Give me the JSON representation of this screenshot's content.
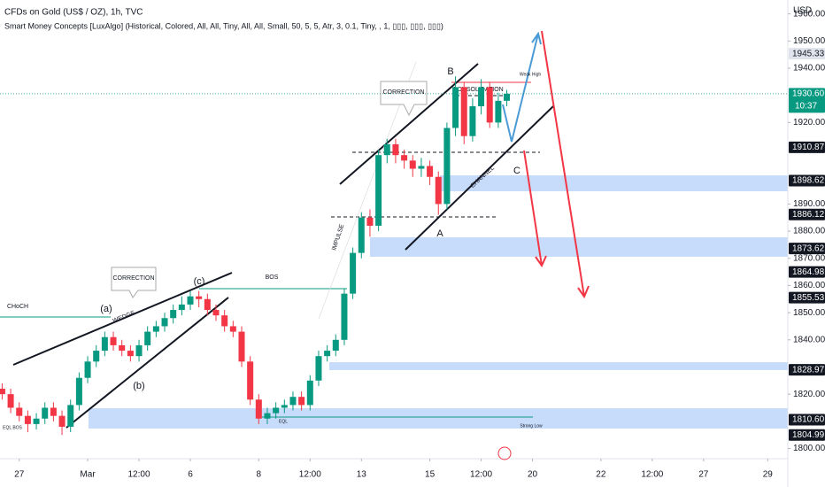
{
  "chart_data": {
    "type": "candlestick",
    "title": "CFDs on Gold (US$ / OZ), 1h, TVC",
    "subtitle": "Smart Money Concepts [LuxAlgo] (Historical, Colored, All, All, Tiny, All, All, Small, 50, 5, 5, Atr, 3, 0.1, Tiny, , 1, ▯▯▯, ▯▯▯, ▯▯▯)",
    "y_axis_label": "USD",
    "countdown": "10:37",
    "up_color": "#089981",
    "down_color": "#f23645",
    "x": [
      -4,
      -2,
      0,
      2,
      4,
      6,
      8,
      10,
      12,
      14,
      16,
      18,
      20,
      22,
      24,
      26,
      28,
      30,
      32,
      34,
      36,
      38,
      40,
      42,
      44,
      46,
      48,
      50,
      52,
      54,
      56,
      58,
      60,
      62,
      64,
      66,
      68,
      70,
      72,
      74,
      76,
      78,
      80,
      82,
      84,
      86,
      88,
      90,
      92,
      94,
      96,
      98,
      100,
      102,
      104,
      106,
      108,
      110,
      112,
      114
    ],
    "open": [
      1822,
      1820,
      1815,
      1812,
      1809,
      1811,
      1815,
      1812,
      1808,
      1816,
      1826,
      1832,
      1836,
      1841,
      1838,
      1836,
      1834,
      1838,
      1843,
      1845,
      1848,
      1851,
      1853,
      1856,
      1855,
      1851,
      1849,
      1845,
      1843,
      1832,
      1818,
      1811,
      1813,
      1815,
      1816,
      1819,
      1816,
      1825,
      1834,
      1836,
      1840,
      1857,
      1872,
      1885,
      1882,
      1908,
      1912,
      1908,
      1906,
      1903,
      1904,
      1900,
      1890,
      1918,
      1933,
      1915,
      1926,
      1933,
      1920,
      1928
    ],
    "high": [
      1824,
      1822,
      1817,
      1814,
      1813,
      1817,
      1817,
      1814,
      1818,
      1828,
      1834,
      1838,
      1843,
      1843,
      1840,
      1838,
      1840,
      1845,
      1847,
      1850,
      1853,
      1856,
      1858,
      1858,
      1857,
      1853,
      1851,
      1847,
      1845,
      1834,
      1820,
      1815,
      1817,
      1818,
      1821,
      1821,
      1827,
      1836,
      1838,
      1842,
      1859,
      1874,
      1887,
      1888,
      1910,
      1914,
      1914,
      1910,
      1908,
      1907,
      1906,
      1902,
      1920,
      1937,
      1935,
      1929,
      1936,
      1935,
      1931,
      1932
    ],
    "low": [
      1818,
      1813,
      1810,
      1806,
      1807,
      1809,
      1810,
      1805,
      1806,
      1814,
      1824,
      1830,
      1834,
      1836,
      1834,
      1832,
      1832,
      1836,
      1841,
      1843,
      1846,
      1849,
      1851,
      1852,
      1849,
      1847,
      1843,
      1841,
      1830,
      1816,
      1809,
      1809,
      1811,
      1813,
      1814,
      1814,
      1814,
      1823,
      1832,
      1834,
      1838,
      1855,
      1870,
      1878,
      1880,
      1905,
      1905,
      1903,
      1900,
      1900,
      1897,
      1886,
      1888,
      1915,
      1912,
      1913,
      1923,
      1918,
      1918,
      1926
    ],
    "close": [
      1820,
      1815,
      1812,
      1809,
      1811,
      1815,
      1812,
      1808,
      1816,
      1826,
      1832,
      1836,
      1841,
      1838,
      1836,
      1834,
      1838,
      1843,
      1845,
      1848,
      1851,
      1853,
      1856,
      1855,
      1851,
      1849,
      1845,
      1843,
      1832,
      1818,
      1811,
      1813,
      1815,
      1816,
      1819,
      1816,
      1825,
      1834,
      1836,
      1840,
      1857,
      1872,
      1885,
      1882,
      1908,
      1912,
      1908,
      1906,
      1903,
      1904,
      1900,
      1890,
      1918,
      1933,
      1915,
      1926,
      1933,
      1920,
      1928,
      1930.6
    ],
    "xlim": [
      -4.5,
      179.7
    ],
    "xticks": [
      {
        "value": 0,
        "label": "27"
      },
      {
        "value": 16,
        "label": "Mar"
      },
      {
        "value": 28,
        "label": "12:00"
      },
      {
        "value": 40,
        "label": "6"
      },
      {
        "value": 56,
        "label": "8"
      },
      {
        "value": 68,
        "label": "12:00"
      },
      {
        "value": 80,
        "label": "13"
      },
      {
        "value": 96,
        "label": "15"
      },
      {
        "value": 108,
        "label": "12:00"
      },
      {
        "value": 120,
        "label": "20"
      },
      {
        "value": 136,
        "label": "22"
      },
      {
        "value": 148,
        "label": "12:00"
      },
      {
        "value": 160,
        "label": "27"
      },
      {
        "value": 175,
        "label": "29"
      }
    ],
    "ylim": [
      1796.25,
      1965.11
    ],
    "yticks": [
      {
        "value": 1960,
        "label": "1960.00"
      },
      {
        "value": 1950,
        "label": "1950.00"
      },
      {
        "value": 1940,
        "label": "1940.00"
      },
      {
        "value": 1920,
        "label": "1920.00"
      },
      {
        "value": 1890,
        "label": "1890.00"
      },
      {
        "value": 1880,
        "label": "1880.00"
      },
      {
        "value": 1870,
        "label": "1870.00"
      },
      {
        "value": 1860,
        "label": "1860.00"
      },
      {
        "value": 1850,
        "label": "1850.00"
      },
      {
        "value": 1840,
        "label": "1840.00"
      },
      {
        "value": 1820,
        "label": "1820.00"
      },
      {
        "value": 1800,
        "label": "1800.00"
      }
    ],
    "price_labels": [
      {
        "value": 1945.33,
        "color": "#e0e3eb"
      },
      {
        "value": 1930.6,
        "label": "1930.60",
        "color": "#089981"
      },
      {
        "value": 1910.87,
        "color": "#131722"
      },
      {
        "value": 1898.62,
        "color": "#131722"
      },
      {
        "value": 1886.12,
        "color": "#131722"
      },
      {
        "value": 1873.62,
        "color": "#131722"
      },
      {
        "value": 1864.98,
        "color": "#131722"
      },
      {
        "value": 1855.53,
        "color": "#131722"
      },
      {
        "value": 1828.97,
        "color": "#131722"
      },
      {
        "value": 1810.6,
        "label": "1810.60",
        "color": "#131722"
      },
      {
        "value": 1804.99,
        "color": "#131722"
      }
    ],
    "annotations": [
      "CORRECTION",
      "CORRECTION",
      "(a)",
      "(b)",
      "(c)",
      "WEDGE",
      "BOS",
      "CHoCH",
      "IMPULSE",
      "CONSOLIDATION",
      "CHANNEL",
      "A",
      "B",
      "C",
      "Weak High",
      "Strong Low",
      "EQL",
      "EQL BOS"
    ]
  }
}
